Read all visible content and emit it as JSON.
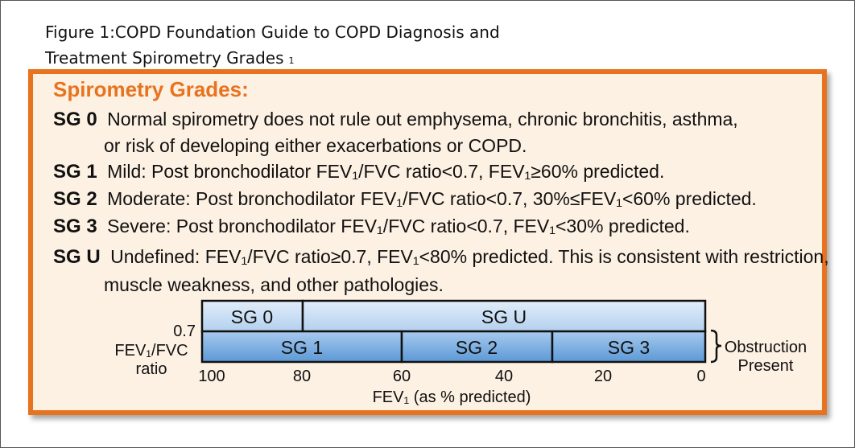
{
  "caption": {
    "line1": "Figure 1:COPD Foundation Guide to COPD Diagnosis and",
    "line2": "Treatment Spirometry Grades",
    "ref": "1"
  },
  "panel": {
    "heading": "Spirometry Grades:",
    "grades": [
      {
        "code": "SG 0",
        "text": "Normal spirometry does not rule out emphysema, chronic bronchitis, asthma,",
        "cont": "or risk of developing either exacerbations or COPD."
      },
      {
        "code": "SG 1",
        "text": "Mild: Post bronchodilator FEV₁/FVC ratio<0.7, FEV₁≥60% predicted."
      },
      {
        "code": "SG 2",
        "text": "Moderate: Post bronchodilator FEV₁/FVC ratio<0.7, 30%≤FEV₁<60% predicted."
      },
      {
        "code": "SG 3",
        "text": "Severe: Post bronchodilator FEV₁/FVC ratio<0.7, FEV₁<30% predicted."
      },
      {
        "code": "SG U",
        "text": "Undefined: FEV₁/FVC ratio≥0.7, FEV₁<80% predicted. This is consistent with restriction,",
        "cont": "muscle weakness, and other pathologies."
      }
    ]
  },
  "diagram": {
    "ratio_value": "0.7",
    "ylabel_line1": "FEV₁/FVC",
    "ylabel_line2": "ratio",
    "top_row": [
      "SG 0",
      "SG U"
    ],
    "bottom_row": [
      "SG 1",
      "SG 2",
      "SG 3"
    ],
    "ticks": [
      "100",
      "80",
      "60",
      "40",
      "20",
      "0"
    ],
    "xlabel": "FEV₁ (as % predicted)",
    "bracket_line1": "Obstruction",
    "bracket_line2": "Present",
    "colors": {
      "top": "#c4dbf2",
      "bottom": "#7ab0e0",
      "border": "#111111",
      "accent": "#e8731f"
    }
  }
}
